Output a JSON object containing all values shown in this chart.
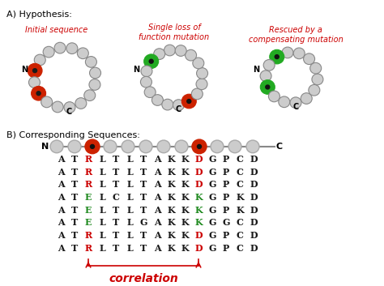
{
  "title_a": "A) Hypothesis:",
  "title_b": "B) Corresponding Sequences:",
  "label_initial": "Initial sequence",
  "label_single": "Single loss of\nfunction mutation",
  "label_rescued": "Rescued by a\ncompensating mutation",
  "sequences": [
    [
      [
        "A",
        "k"
      ],
      [
        "T",
        "k"
      ],
      [
        "R",
        "r"
      ],
      [
        "L",
        "k"
      ],
      [
        "T",
        "k"
      ],
      [
        "L",
        "k"
      ],
      [
        "T",
        "k"
      ],
      [
        "A",
        "k"
      ],
      [
        "K",
        "k"
      ],
      [
        "K",
        "k"
      ],
      [
        "D",
        "r"
      ],
      [
        "G",
        "k"
      ],
      [
        "P",
        "k"
      ],
      [
        "C",
        "k"
      ],
      [
        "D",
        "k"
      ]
    ],
    [
      [
        "A",
        "k"
      ],
      [
        "T",
        "k"
      ],
      [
        "R",
        "r"
      ],
      [
        "L",
        "k"
      ],
      [
        "T",
        "k"
      ],
      [
        "L",
        "k"
      ],
      [
        "T",
        "k"
      ],
      [
        "A",
        "k"
      ],
      [
        "K",
        "k"
      ],
      [
        "K",
        "k"
      ],
      [
        "D",
        "r"
      ],
      [
        "G",
        "k"
      ],
      [
        "P",
        "k"
      ],
      [
        "C",
        "k"
      ],
      [
        "D",
        "k"
      ]
    ],
    [
      [
        "A",
        "k"
      ],
      [
        "T",
        "k"
      ],
      [
        "R",
        "r"
      ],
      [
        "L",
        "k"
      ],
      [
        "T",
        "k"
      ],
      [
        "L",
        "k"
      ],
      [
        "T",
        "k"
      ],
      [
        "A",
        "k"
      ],
      [
        "K",
        "k"
      ],
      [
        "K",
        "k"
      ],
      [
        "D",
        "r"
      ],
      [
        "G",
        "k"
      ],
      [
        "P",
        "k"
      ],
      [
        "C",
        "k"
      ],
      [
        "D",
        "k"
      ]
    ],
    [
      [
        "A",
        "k"
      ],
      [
        "T",
        "k"
      ],
      [
        "E",
        "g"
      ],
      [
        "L",
        "k"
      ],
      [
        "C",
        "k"
      ],
      [
        "L",
        "k"
      ],
      [
        "T",
        "k"
      ],
      [
        "A",
        "k"
      ],
      [
        "K",
        "k"
      ],
      [
        "K",
        "k"
      ],
      [
        "K",
        "g"
      ],
      [
        "G",
        "k"
      ],
      [
        "P",
        "k"
      ],
      [
        "K",
        "k"
      ],
      [
        "D",
        "k"
      ]
    ],
    [
      [
        "A",
        "k"
      ],
      [
        "T",
        "k"
      ],
      [
        "E",
        "g"
      ],
      [
        "L",
        "k"
      ],
      [
        "T",
        "k"
      ],
      [
        "L",
        "k"
      ],
      [
        "T",
        "k"
      ],
      [
        "A",
        "k"
      ],
      [
        "K",
        "k"
      ],
      [
        "K",
        "k"
      ],
      [
        "K",
        "g"
      ],
      [
        "G",
        "k"
      ],
      [
        "P",
        "k"
      ],
      [
        "K",
        "k"
      ],
      [
        "D",
        "k"
      ]
    ],
    [
      [
        "A",
        "k"
      ],
      [
        "T",
        "k"
      ],
      [
        "E",
        "g"
      ],
      [
        "L",
        "k"
      ],
      [
        "T",
        "k"
      ],
      [
        "L",
        "k"
      ],
      [
        "G",
        "k"
      ],
      [
        "A",
        "k"
      ],
      [
        "K",
        "k"
      ],
      [
        "K",
        "k"
      ],
      [
        "K",
        "g"
      ],
      [
        "G",
        "k"
      ],
      [
        "G",
        "k"
      ],
      [
        "C",
        "k"
      ],
      [
        "D",
        "k"
      ]
    ],
    [
      [
        "A",
        "k"
      ],
      [
        "T",
        "k"
      ],
      [
        "R",
        "r"
      ],
      [
        "L",
        "k"
      ],
      [
        "T",
        "k"
      ],
      [
        "L",
        "k"
      ],
      [
        "T",
        "k"
      ],
      [
        "A",
        "k"
      ],
      [
        "K",
        "k"
      ],
      [
        "K",
        "k"
      ],
      [
        "D",
        "r"
      ],
      [
        "G",
        "k"
      ],
      [
        "P",
        "k"
      ],
      [
        "C",
        "k"
      ],
      [
        "D",
        "k"
      ]
    ],
    [
      [
        "A",
        "k"
      ],
      [
        "T",
        "k"
      ],
      [
        "R",
        "r"
      ],
      [
        "L",
        "k"
      ],
      [
        "T",
        "k"
      ],
      [
        "L",
        "k"
      ],
      [
        "T",
        "k"
      ],
      [
        "A",
        "k"
      ],
      [
        "K",
        "k"
      ],
      [
        "K",
        "k"
      ],
      [
        "D",
        "r"
      ],
      [
        "G",
        "k"
      ],
      [
        "P",
        "k"
      ],
      [
        "C",
        "k"
      ],
      [
        "D",
        "k"
      ]
    ]
  ],
  "color_map": {
    "k": "#1a1a1a",
    "r": "#cc0000",
    "g": "#228B22"
  },
  "bead_colors_chain": [
    "#bbbbbb",
    "#bbbbbb",
    "#cc2200",
    "#bbbbbb",
    "#bbbbbb",
    "#bbbbbb",
    "#bbbbbb",
    "#bbbbbb",
    "#cc2200",
    "#bbbbbb",
    "#bbbbbb",
    "#bbbbbb"
  ],
  "chain_n_label": "N",
  "chain_c_label": "C",
  "correlation_label": "correlation",
  "bg_color": "#ffffff",
  "red": "#cc0000",
  "green": "#228B22"
}
